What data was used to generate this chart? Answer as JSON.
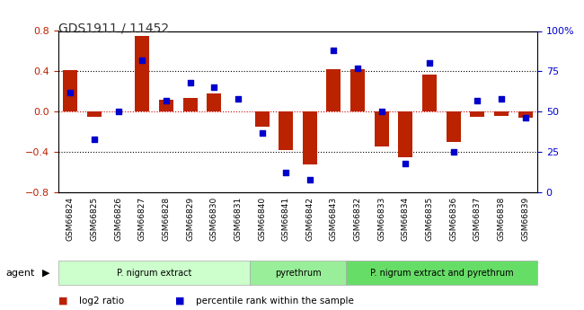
{
  "title": "GDS1911 / 11452",
  "samples": [
    "GSM66824",
    "GSM66825",
    "GSM66826",
    "GSM66827",
    "GSM66828",
    "GSM66829",
    "GSM66830",
    "GSM66831",
    "GSM66840",
    "GSM66841",
    "GSM66842",
    "GSM66843",
    "GSM66832",
    "GSM66833",
    "GSM66834",
    "GSM66835",
    "GSM66836",
    "GSM66837",
    "GSM66838",
    "GSM66839"
  ],
  "log2_ratio": [
    0.41,
    -0.05,
    0.0,
    0.75,
    0.12,
    0.14,
    0.18,
    0.0,
    -0.15,
    -0.38,
    -0.52,
    0.42,
    0.42,
    -0.35,
    -0.45,
    0.37,
    -0.3,
    -0.05,
    -0.04,
    -0.06
  ],
  "percentile": [
    62,
    33,
    50,
    82,
    57,
    68,
    65,
    58,
    37,
    12,
    8,
    88,
    77,
    50,
    18,
    80,
    25,
    57,
    58,
    46
  ],
  "groups": [
    {
      "label": "P. nigrum extract",
      "start": 0,
      "end": 8,
      "color": "#ccffcc"
    },
    {
      "label": "pyrethrum",
      "start": 8,
      "end": 12,
      "color": "#99ee99"
    },
    {
      "label": "P. nigrum extract and pyrethrum",
      "start": 12,
      "end": 20,
      "color": "#66dd66"
    }
  ],
  "ylim": [
    -0.8,
    0.8
  ],
  "y2lim": [
    0,
    100
  ],
  "bar_color": "#bb2200",
  "dot_color": "#0000cc",
  "dotted_line_color": "#000000",
  "zero_line_color": "#cc0000",
  "background_color": "#ffffff",
  "bar_width": 0.6,
  "legend_items": [
    "log2 ratio",
    "percentile rank within the sample"
  ]
}
